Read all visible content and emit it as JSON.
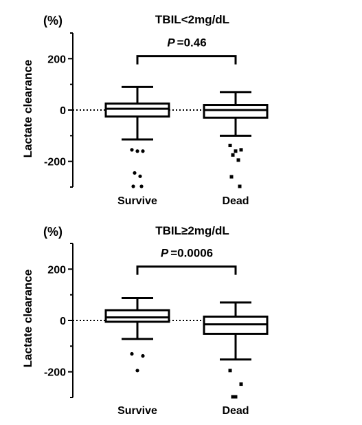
{
  "chart_data": [
    {
      "type": "box",
      "title": "TBIL<2mg/dL",
      "unit_label": "(%)",
      "ylabel": "Lactate clearance",
      "xlabel": "",
      "categories": [
        "Survive",
        "Dead"
      ],
      "ylim": [
        -300,
        300
      ],
      "yticks": [
        200,
        0,
        -200
      ],
      "ytick_labels": [
        "200",
        "0",
        "-200"
      ],
      "reference_line_y": 0,
      "significance": {
        "p_prefix": "P",
        "p_text": "=0.46",
        "between": [
          "Survive",
          "Dead"
        ],
        "at_y": 210
      },
      "boxes": [
        {
          "category": "Survive",
          "whisker_low": -115,
          "q1": -25,
          "median": 5,
          "q3": 25,
          "whisker_high": 90,
          "outliers": [
            {
              "y": -155,
              "marker": "circle"
            },
            {
              "y": -160,
              "marker": "circle"
            },
            {
              "y": -160,
              "marker": "circle"
            },
            {
              "y": -245,
              "marker": "circle"
            },
            {
              "y": -258,
              "marker": "circle"
            },
            {
              "y": -300,
              "marker": "circle"
            },
            {
              "y": -300,
              "marker": "circle"
            }
          ]
        },
        {
          "category": "Dead",
          "whisker_low": -100,
          "q1": -30,
          "median": 0,
          "q3": 20,
          "whisker_high": 70,
          "outliers": [
            {
              "y": -138,
              "marker": "square"
            },
            {
              "y": -155,
              "marker": "square"
            },
            {
              "y": -160,
              "marker": "square"
            },
            {
              "y": -175,
              "marker": "square"
            },
            {
              "y": -195,
              "marker": "square"
            },
            {
              "y": -260,
              "marker": "square"
            },
            {
              "y": -300,
              "marker": "square"
            }
          ]
        }
      ]
    },
    {
      "type": "box",
      "title": "TBIL≥2mg/dL",
      "unit_label": "(%)",
      "ylabel": "Lactate clearance",
      "xlabel": "",
      "categories": [
        "Survive",
        "Dead"
      ],
      "ylim": [
        -300,
        300
      ],
      "yticks": [
        200,
        0,
        -200
      ],
      "ytick_labels": [
        "200",
        "0",
        "-200"
      ],
      "reference_line_y": 0,
      "significance": {
        "p_prefix": "P",
        "p_text": "=0.0006",
        "between": [
          "Survive",
          "Dead"
        ],
        "at_y": 210
      },
      "boxes": [
        {
          "category": "Survive",
          "whisker_low": -72,
          "q1": -5,
          "median": 12,
          "q3": 40,
          "whisker_high": 87,
          "outliers": [
            {
              "y": -130,
              "marker": "circle"
            },
            {
              "y": -138,
              "marker": "circle"
            },
            {
              "y": -195,
              "marker": "circle"
            }
          ]
        },
        {
          "category": "Dead",
          "whisker_low": -152,
          "q1": -52,
          "median": -15,
          "q3": 15,
          "whisker_high": 70,
          "outliers": [
            {
              "y": -195,
              "marker": "square"
            },
            {
              "y": -248,
              "marker": "square"
            },
            {
              "y": -300,
              "marker": "square"
            },
            {
              "y": -300,
              "marker": "square"
            }
          ]
        }
      ]
    }
  ]
}
